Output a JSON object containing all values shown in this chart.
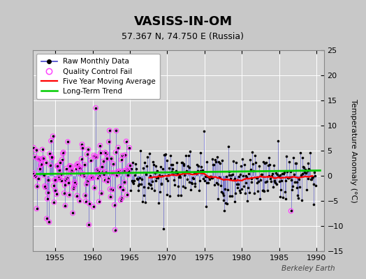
{
  "title": "VASISS-IN-OM",
  "subtitle": "57.367 N, 74.750 E (Russia)",
  "ylabel": "Temperature Anomaly (°C)",
  "watermark": "Berkeley Earth",
  "xlim": [
    1952,
    1991
  ],
  "ylim": [
    -15,
    25
  ],
  "yticks": [
    -15,
    -10,
    -5,
    0,
    5,
    10,
    15,
    20,
    25
  ],
  "xticks": [
    1955,
    1960,
    1965,
    1970,
    1975,
    1980,
    1985,
    1990
  ],
  "raw_color": "#4444cc",
  "dot_color": "#000000",
  "qc_color": "#ff44ff",
  "ma_color": "#ff0000",
  "trend_color": "#00cc00",
  "trend_x": [
    1952.5,
    1990.5
  ],
  "trend_y": [
    0.35,
    1.05
  ]
}
